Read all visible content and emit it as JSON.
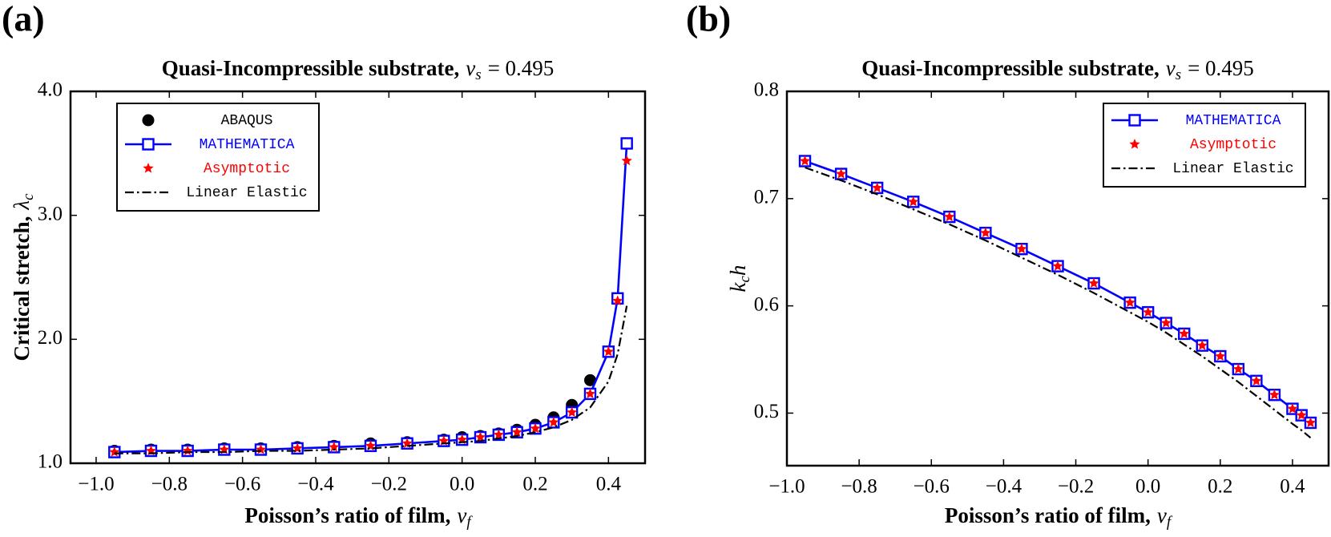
{
  "chart_data": [
    {
      "type": "line",
      "panel": "(a)",
      "title": "Quasi-Incompressible substrate,",
      "title_symbol": "ν",
      "title_subscript": "s",
      "title_value": "= 0.495",
      "xlabel": "Poisson’s ratio of film,",
      "xlabel_symbol": "ν",
      "xlabel_subscript": "f",
      "ylabel": "Critical stretch,",
      "ylabel_symbol": "λ",
      "ylabel_subscript": "c",
      "x": [
        -0.95,
        -0.85,
        -0.75,
        -0.65,
        -0.55,
        -0.45,
        -0.35,
        -0.25,
        -0.15,
        -0.05,
        0,
        0.05,
        0.1,
        0.15,
        0.2,
        0.25,
        0.3,
        0.35,
        0.4,
        0.425,
        0.45
      ],
      "series": [
        {
          "name": "ABAQUS",
          "color": "#000000",
          "marker": "circle",
          "line": false,
          "values": [
            1.1,
            1.11,
            1.11,
            1.12,
            1.12,
            1.13,
            1.14,
            1.16,
            1.17,
            1.19,
            1.21,
            1.22,
            1.24,
            1.27,
            1.31,
            1.37,
            1.47,
            1.67,
            null,
            null,
            null
          ]
        },
        {
          "name": "MATHEMATICA",
          "color": "#0000ff",
          "marker": "square",
          "line": true,
          "values": [
            1.09,
            1.1,
            1.1,
            1.11,
            1.11,
            1.12,
            1.13,
            1.14,
            1.16,
            1.18,
            1.19,
            1.21,
            1.23,
            1.25,
            1.28,
            1.33,
            1.41,
            1.56,
            1.9,
            2.33,
            3.58
          ]
        },
        {
          "name": "Asymptotic",
          "color": "#ff0000",
          "marker": "star",
          "line": false,
          "values": [
            1.09,
            1.1,
            1.1,
            1.11,
            1.11,
            1.12,
            1.13,
            1.14,
            1.16,
            1.18,
            1.19,
            1.21,
            1.23,
            1.25,
            1.28,
            1.33,
            1.41,
            1.56,
            1.9,
            2.31,
            3.44
          ]
        },
        {
          "name": "Linear Elastic",
          "color": "#000000",
          "line": true,
          "dash": "dashdot",
          "values": [
            1.08,
            1.08,
            1.09,
            1.09,
            1.1,
            1.1,
            1.11,
            1.12,
            1.14,
            1.16,
            1.17,
            1.18,
            1.2,
            1.22,
            1.25,
            1.29,
            1.35,
            1.45,
            1.66,
            1.88,
            2.27
          ]
        }
      ],
      "xlim": [
        -1.07,
        0.5
      ],
      "ylim": [
        1.0,
        4.0
      ],
      "xticks": [
        {
          "value": -1.0,
          "label": "−1.0"
        },
        {
          "value": -0.8,
          "label": "−0.8"
        },
        {
          "value": -0.6,
          "label": "−0.6"
        },
        {
          "value": -0.4,
          "label": "−0.4"
        },
        {
          "value": -0.2,
          "label": "−0.2"
        },
        {
          "value": 0,
          "label": "0.0"
        },
        0.2,
        0.4
      ],
      "yticks": [
        {
          "value": 1,
          "label": "1.0"
        },
        {
          "value": 2,
          "label": "2.0"
        },
        {
          "value": 3,
          "label": "3.0"
        },
        {
          "value": 4,
          "label": "4.0"
        }
      ],
      "legend": "upper left"
    },
    {
      "type": "line",
      "panel": "(b)",
      "title": "Quasi-Incompressible substrate,",
      "title_symbol": "ν",
      "title_subscript": "s",
      "title_value": "= 0.495",
      "xlabel": "Poisson’s ratio of film,",
      "xlabel_symbol": "ν",
      "xlabel_subscript": "f",
      "ylabel_symbol": "k",
      "ylabel_subscript": "c",
      "ylabel_suffix": "h",
      "x": [
        -0.95,
        -0.85,
        -0.75,
        -0.65,
        -0.55,
        -0.45,
        -0.35,
        -0.25,
        -0.15,
        -0.05,
        0,
        0.05,
        0.1,
        0.15,
        0.2,
        0.25,
        0.3,
        0.35,
        0.4,
        0.425,
        0.45
      ],
      "series": [
        {
          "name": "MATHEMATICA",
          "color": "#0000ff",
          "marker": "square",
          "line": true,
          "values": [
            0.735,
            0.723,
            0.71,
            0.697,
            0.683,
            0.668,
            0.653,
            0.637,
            0.621,
            0.603,
            0.594,
            0.584,
            0.574,
            0.563,
            0.553,
            0.541,
            0.53,
            0.517,
            0.504,
            0.498,
            0.491
          ]
        },
        {
          "name": "Asymptotic",
          "color": "#ff0000",
          "marker": "star",
          "line": false,
          "values": [
            0.735,
            0.723,
            0.71,
            0.697,
            0.683,
            0.668,
            0.653,
            0.637,
            0.621,
            0.603,
            0.594,
            0.584,
            0.574,
            0.563,
            0.553,
            0.541,
            0.53,
            0.517,
            0.504,
            0.498,
            0.491
          ]
        },
        {
          "name": "Linear Elastic",
          "color": "#000000",
          "line": true,
          "dash": "dashdot",
          "values": [
            0.729,
            0.717,
            0.704,
            0.69,
            0.676,
            0.661,
            0.645,
            0.629,
            0.612,
            0.594,
            0.585,
            0.575,
            0.564,
            0.553,
            0.541,
            0.529,
            0.516,
            0.503,
            0.49,
            0.484,
            0.477
          ]
        }
      ],
      "xlim": [
        -1.0,
        0.5
      ],
      "ylim": [
        0.451,
        0.8
      ],
      "xticks": [
        {
          "value": -1.0,
          "label": "−1.0"
        },
        {
          "value": -0.8,
          "label": "−0.8"
        },
        {
          "value": -0.6,
          "label": "−0.6"
        },
        {
          "value": -0.4,
          "label": "−0.4"
        },
        {
          "value": -0.2,
          "label": "−0.2"
        },
        {
          "value": 0,
          "label": "0.0"
        },
        0.2,
        0.4
      ],
      "yticks": [
        0.5,
        0.6,
        0.7,
        0.8
      ],
      "legend": "upper right"
    }
  ]
}
